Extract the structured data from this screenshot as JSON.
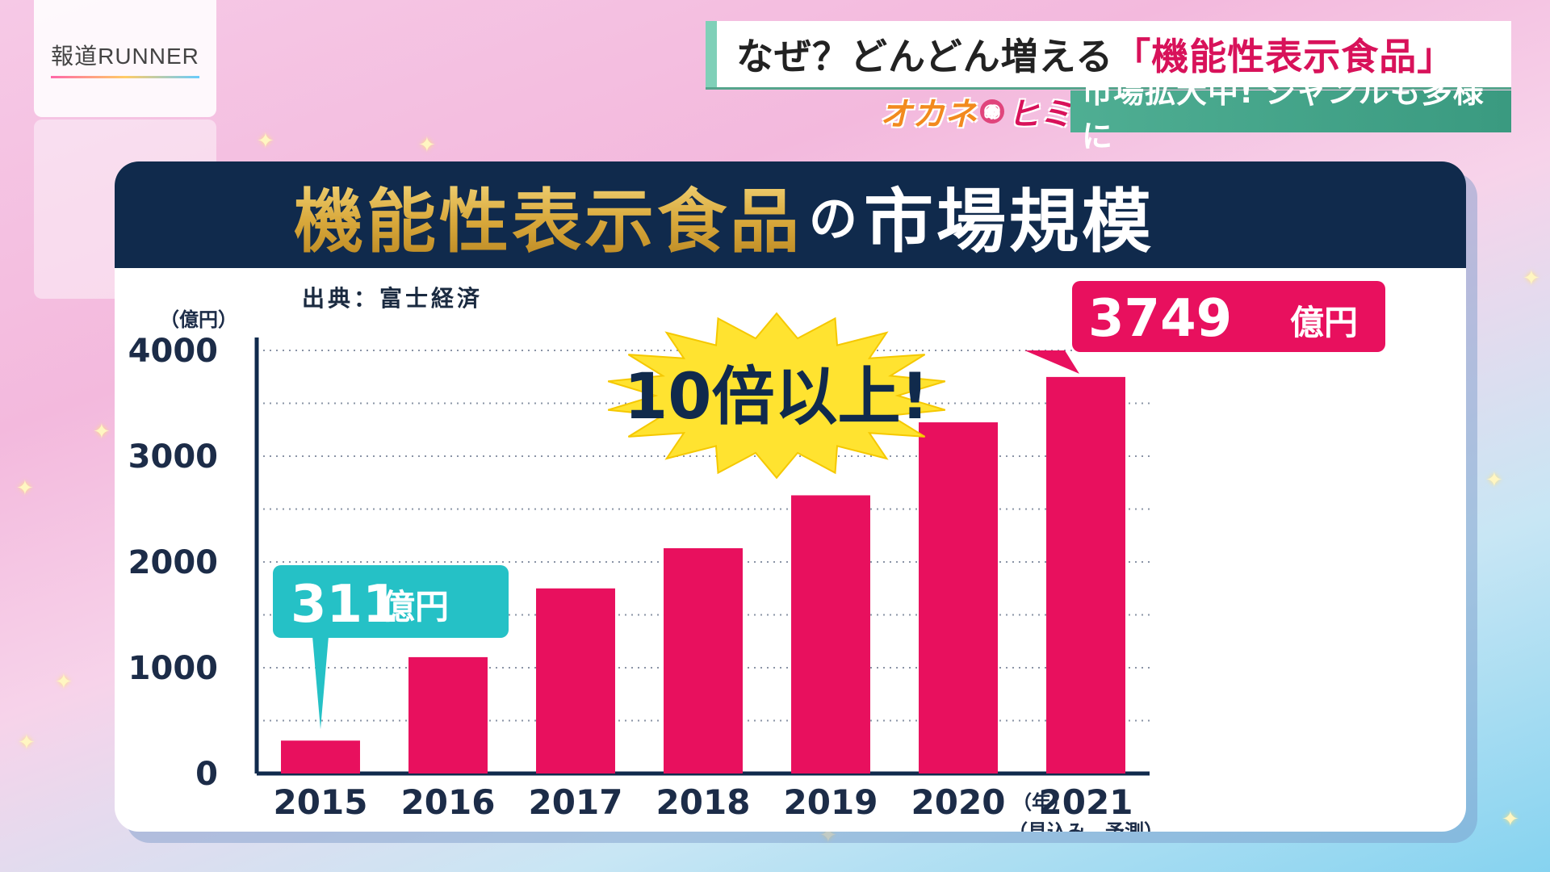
{
  "broadcast": {
    "program_logo": "報道RUNNER",
    "headline_main": "なぜ？どんどん増える",
    "headline_accent": "「機能性表示食品」",
    "segment_logo_part1": "オカネ",
    "segment_logo_no": "の",
    "segment_logo_part2": "ヒミツ",
    "sub_caption": "市場拡大中! ジャンルも多様に"
  },
  "chart_title": {
    "gold": "機能性表示食品",
    "particle": "の",
    "white": "市場規模"
  },
  "source_note": "出典：富士経済",
  "colors": {
    "bar": "#e8105e",
    "navy": "#102a4c",
    "callout_2015": "#25c1c6",
    "callout_2021": "#e8105e",
    "burst": "#ffe330"
  },
  "chart_data": {
    "type": "bar",
    "categories": [
      "2015",
      "2016",
      "2017",
      "2018",
      "2019",
      "2020",
      "2021"
    ],
    "values": [
      311,
      1100,
      1750,
      2130,
      2630,
      3320,
      3749
    ],
    "y_unit_label": "（億円）",
    "x_unit_label": "（年）",
    "x_last_note": "（見込み　予測）",
    "ylim": [
      0,
      4000
    ],
    "yticks": [
      0,
      1000,
      2000,
      3000,
      4000
    ],
    "grid": true,
    "annotations": {
      "first_value": "311",
      "first_unit": "億円",
      "last_value": "3749",
      "last_unit": "億円",
      "burst_text": "10倍以上!"
    }
  }
}
